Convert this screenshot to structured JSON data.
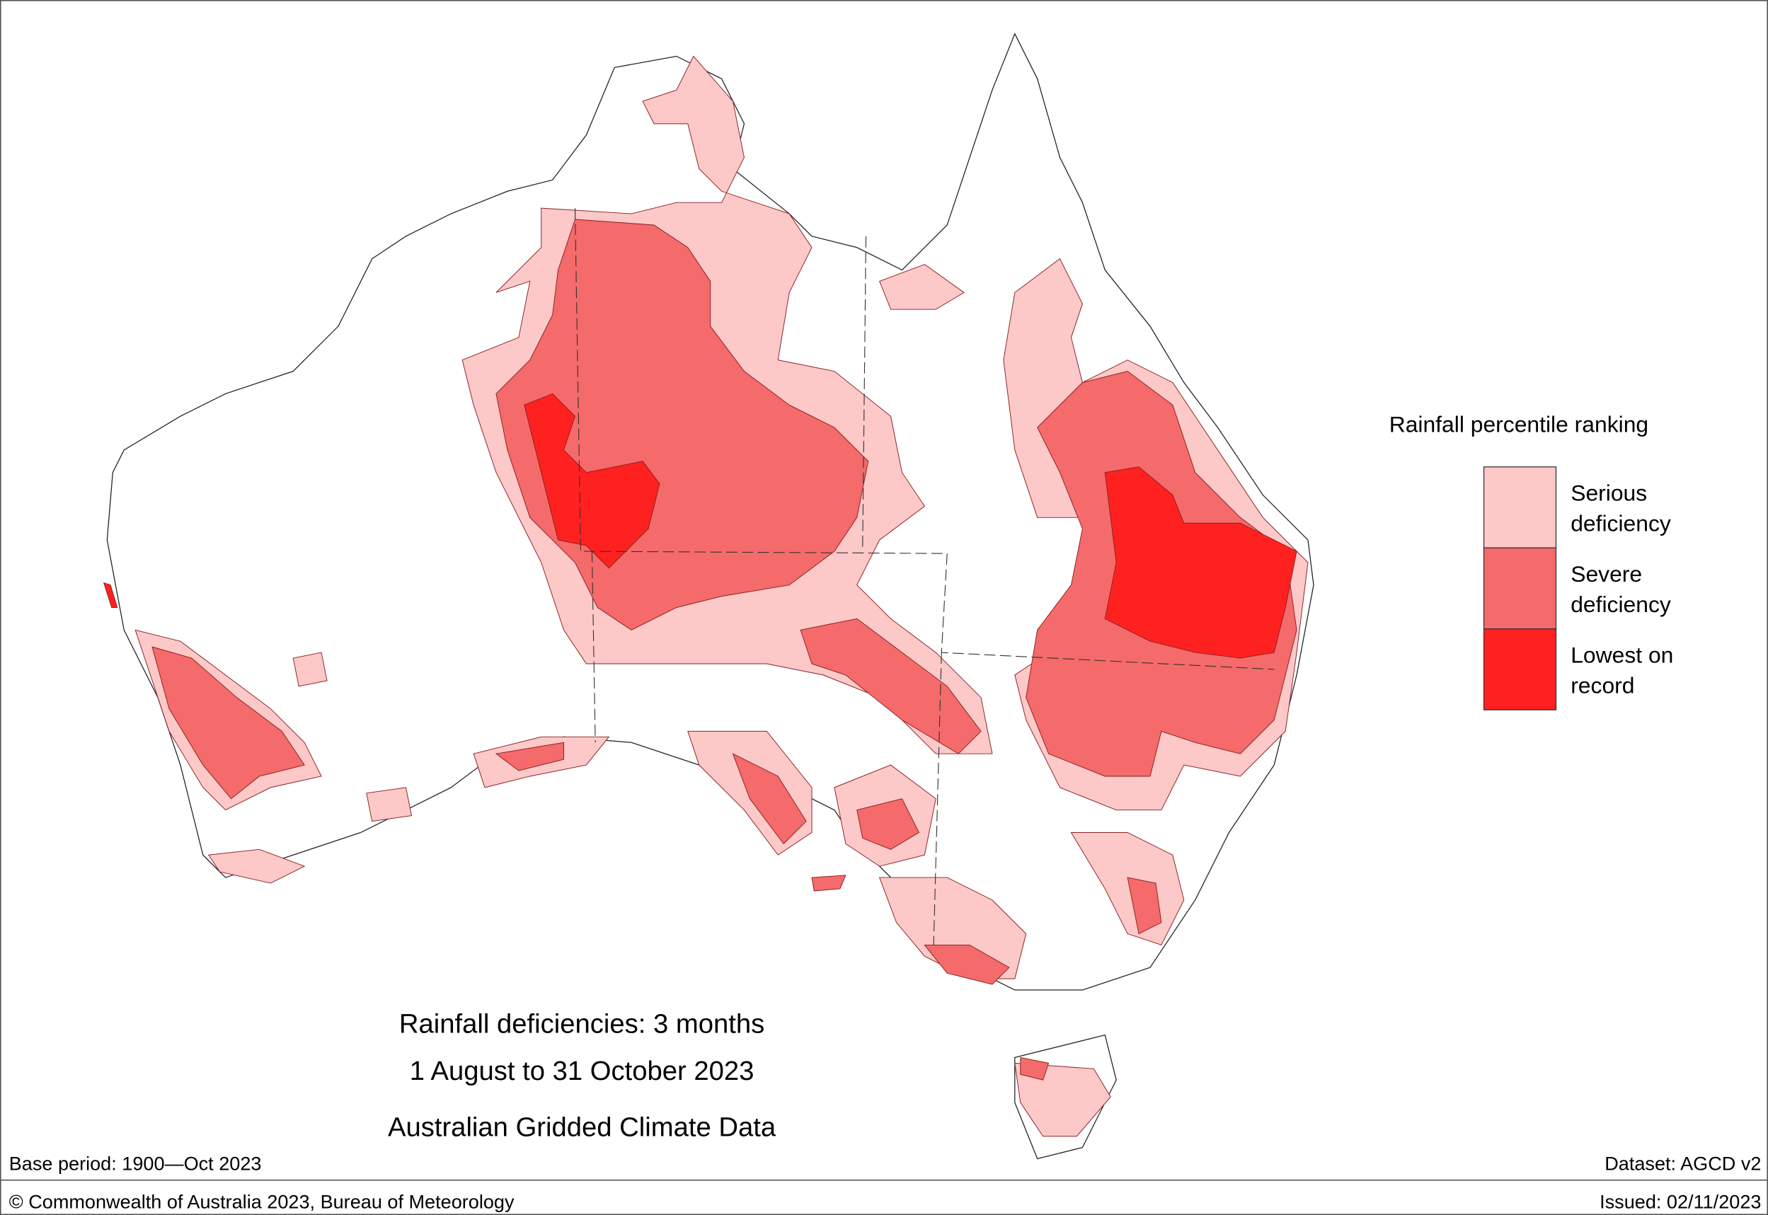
{
  "title_lines": [
    "Rainfall deficiencies: 3 months",
    "1 August to 31 October 2023",
    "Australian Gridded Climate Data"
  ],
  "legend": {
    "title": "Rainfall percentile ranking",
    "items": [
      {
        "lines": [
          "Serious",
          "deficiency"
        ],
        "color": "#fcc8c8"
      },
      {
        "lines": [
          "Severe",
          "deficiency"
        ],
        "color": "#f56a6a"
      },
      {
        "lines": [
          "Lowest on",
          "record"
        ],
        "color": "#ff2020"
      }
    ]
  },
  "footer": {
    "base_period": "Base period: 1900—Oct 2023",
    "dataset": "Dataset: AGCD v2",
    "copyright": "© Commonwealth of Australia 2023, Bureau of Meteorology",
    "issued": "Issued: 02/11/2023"
  }
}
